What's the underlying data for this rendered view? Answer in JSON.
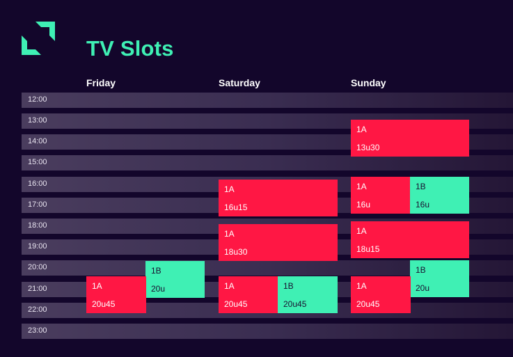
{
  "title": "TV Slots",
  "days": [
    "Friday",
    "Saturday",
    "Sunday"
  ],
  "times": [
    "12:00",
    "13:00",
    "14:00",
    "15:00",
    "16:00",
    "17:00",
    "18:00",
    "19:00",
    "20:00",
    "21:00",
    "22:00",
    "23:00"
  ],
  "colors": {
    "background": "#13062b",
    "accent": "#3ff0b4",
    "slot_a": "#ff1744",
    "slot_b": "#3ff0b4"
  },
  "slots": {
    "friday_1b": {
      "channel": "1B",
      "time": "20u"
    },
    "friday_1a": {
      "channel": "1A",
      "time": "20u45"
    },
    "saturday_1a_16": {
      "channel": "1A",
      "time": "16u15"
    },
    "saturday_1a_18": {
      "channel": "1A",
      "time": "18u30"
    },
    "saturday_1a_20": {
      "channel": "1A",
      "time": "20u45"
    },
    "saturday_1b_20": {
      "channel": "1B",
      "time": "20u45"
    },
    "sunday_1a_13": {
      "channel": "1A",
      "time": "13u30"
    },
    "sunday_1a_16": {
      "channel": "1A",
      "time": "16u"
    },
    "sunday_1b_16": {
      "channel": "1B",
      "time": "16u"
    },
    "sunday_1a_18": {
      "channel": "1A",
      "time": "18u15"
    },
    "sunday_1b_20": {
      "channel": "1B",
      "time": "20u"
    },
    "sunday_1a_20": {
      "channel": "1A",
      "time": "20u45"
    }
  }
}
